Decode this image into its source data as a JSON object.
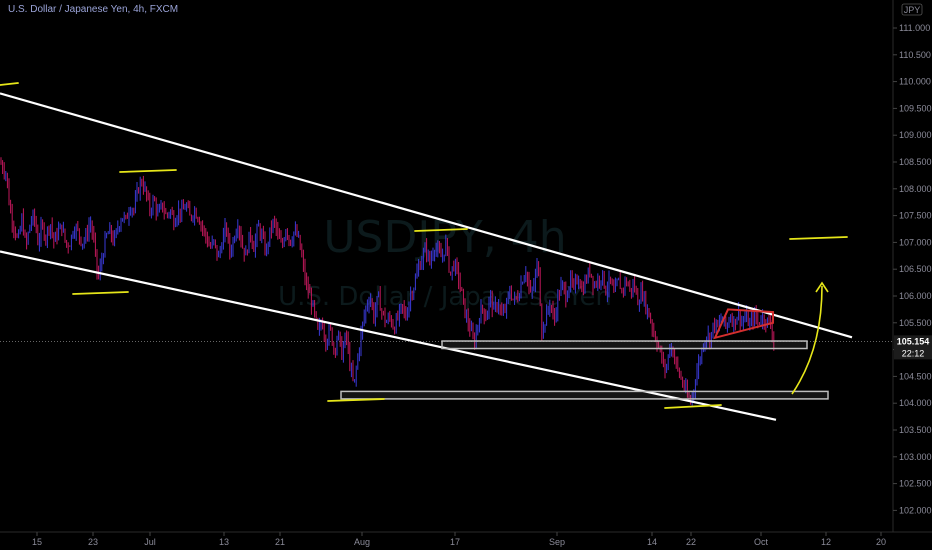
{
  "title": "U.S. Dollar / Japanese Yen, 4h, FXCM",
  "currency_badge": "JPY",
  "watermark": {
    "symbol": "USDJPY, 4h",
    "name": "U.S. Dollar / Japanese Yen"
  },
  "price_label": "105.154",
  "countdown": "22:12",
  "colors": {
    "up": "#3a3ad8",
    "down": "#c2185b",
    "channel": "#ffffff",
    "marker": "#e6e619",
    "zone": "#bdbdbd",
    "triangle": "#d32f2f",
    "badge_bg": "#1c1c1c"
  },
  "chart_data": {
    "type": "candlestick",
    "title": "U.S. Dollar / Japanese Yen, 4h, FXCM",
    "ylim": [
      101.6,
      111.3
    ],
    "y_ticks": [
      "111.000",
      "110.500",
      "110.000",
      "109.500",
      "109.000",
      "108.500",
      "108.000",
      "107.500",
      "107.000",
      "106.500",
      "106.000",
      "105.500",
      "105.000",
      "104.500",
      "104.000",
      "103.500",
      "103.000",
      "102.500",
      "102.000"
    ],
    "x_ticks": [
      "15",
      "23",
      "Jul",
      "13",
      "21",
      "Aug",
      "17",
      "Sep",
      "14",
      "22",
      "Oct",
      "12",
      "20"
    ],
    "close_path": [
      [
        0,
        108.5
      ],
      [
        6,
        108.3
      ],
      [
        10,
        107.6
      ],
      [
        14,
        107.3
      ],
      [
        18,
        107.0
      ],
      [
        22,
        107.45
      ],
      [
        26,
        106.9
      ],
      [
        30,
        107.35
      ],
      [
        34,
        107.5
      ],
      [
        38,
        107.0
      ],
      [
        42,
        107.3
      ],
      [
        46,
        107.1
      ],
      [
        50,
        107.4
      ],
      [
        54,
        107.0
      ],
      [
        58,
        107.2
      ],
      [
        62,
        107.3
      ],
      [
        66,
        106.95
      ],
      [
        70,
        107.0
      ],
      [
        74,
        107.3
      ],
      [
        78,
        107.2
      ],
      [
        82,
        107.0
      ],
      [
        86,
        107.1
      ],
      [
        90,
        107.4
      ],
      [
        94,
        107.0
      ],
      [
        98,
        106.3
      ],
      [
        102,
        106.7
      ],
      [
        106,
        107.1
      ],
      [
        110,
        107.2
      ],
      [
        114,
        107.0
      ],
      [
        118,
        107.3
      ],
      [
        122,
        107.5
      ],
      [
        126,
        107.4
      ],
      [
        130,
        107.7
      ],
      [
        134,
        107.6
      ],
      [
        138,
        108.0
      ],
      [
        142,
        108.15
      ],
      [
        146,
        107.9
      ],
      [
        150,
        107.6
      ],
      [
        154,
        107.8
      ],
      [
        158,
        107.5
      ],
      [
        162,
        107.7
      ],
      [
        166,
        107.5
      ],
      [
        170,
        107.6
      ],
      [
        174,
        107.4
      ],
      [
        178,
        107.6
      ],
      [
        182,
        107.55
      ],
      [
        186,
        107.7
      ],
      [
        190,
        107.45
      ],
      [
        194,
        107.6
      ],
      [
        198,
        107.5
      ],
      [
        202,
        107.3
      ],
      [
        206,
        107.1
      ],
      [
        210,
        106.9
      ],
      [
        214,
        107.0
      ],
      [
        218,
        106.7
      ],
      [
        222,
        107.0
      ],
      [
        226,
        107.3
      ],
      [
        230,
        106.8
      ],
      [
        234,
        107.1
      ],
      [
        238,
        107.4
      ],
      [
        242,
        106.95
      ],
      [
        246,
        106.75
      ],
      [
        250,
        107.2
      ],
      [
        254,
        106.9
      ],
      [
        258,
        107.3
      ],
      [
        262,
        107.1
      ],
      [
        266,
        106.8
      ],
      [
        270,
        107.2
      ],
      [
        274,
        107.4
      ],
      [
        278,
        107.1
      ],
      [
        282,
        106.9
      ],
      [
        286,
        107.3
      ],
      [
        290,
        107.0
      ],
      [
        294,
        107.2
      ],
      [
        298,
        107.1
      ],
      [
        302,
        106.7
      ],
      [
        306,
        106.2
      ],
      [
        310,
        106.0
      ],
      [
        314,
        105.7
      ],
      [
        318,
        105.3
      ],
      [
        322,
        105.55
      ],
      [
        326,
        105.15
      ],
      [
        330,
        105.4
      ],
      [
        334,
        105.0
      ],
      [
        338,
        105.3
      ],
      [
        342,
        104.9
      ],
      [
        346,
        105.3
      ],
      [
        350,
        104.7
      ],
      [
        354,
        104.3
      ],
      [
        358,
        104.9
      ],
      [
        362,
        105.4
      ],
      [
        366,
        105.8
      ],
      [
        370,
        106.0
      ],
      [
        374,
        105.6
      ],
      [
        378,
        106.0
      ],
      [
        382,
        105.7
      ],
      [
        386,
        105.5
      ],
      [
        390,
        105.6
      ],
      [
        394,
        105.4
      ],
      [
        398,
        105.6
      ],
      [
        402,
        105.8
      ],
      [
        406,
        105.6
      ],
      [
        410,
        106.0
      ],
      [
        414,
        106.2
      ],
      [
        418,
        106.5
      ],
      [
        422,
        106.7
      ],
      [
        426,
        106.9
      ],
      [
        430,
        106.6
      ],
      [
        434,
        106.95
      ],
      [
        438,
        106.8
      ],
      [
        442,
        106.7
      ],
      [
        446,
        107.0
      ],
      [
        450,
        106.4
      ],
      [
        454,
        106.6
      ],
      [
        458,
        106.4
      ],
      [
        462,
        106.0
      ],
      [
        466,
        105.6
      ],
      [
        470,
        105.4
      ],
      [
        474,
        105.1
      ],
      [
        478,
        105.5
      ],
      [
        482,
        105.8
      ],
      [
        486,
        105.6
      ],
      [
        490,
        106.0
      ],
      [
        494,
        105.7
      ],
      [
        498,
        105.9
      ],
      [
        502,
        105.6
      ],
      [
        506,
        105.8
      ],
      [
        510,
        106.1
      ],
      [
        514,
        105.9
      ],
      [
        518,
        106.0
      ],
      [
        522,
        106.3
      ],
      [
        526,
        106.5
      ],
      [
        530,
        106.0
      ],
      [
        534,
        106.2
      ],
      [
        538,
        106.7
      ],
      [
        542,
        105.3
      ],
      [
        546,
        105.6
      ],
      [
        550,
        105.9
      ],
      [
        554,
        105.5
      ],
      [
        558,
        106.0
      ],
      [
        562,
        106.2
      ],
      [
        566,
        106.0
      ],
      [
        570,
        106.3
      ],
      [
        574,
        106.1
      ],
      [
        578,
        106.4
      ],
      [
        582,
        106.1
      ],
      [
        586,
        106.3
      ],
      [
        590,
        106.5
      ],
      [
        594,
        106.2
      ],
      [
        598,
        106.3
      ],
      [
        602,
        106.4
      ],
      [
        606,
        106.1
      ],
      [
        610,
        106.3
      ],
      [
        614,
        106.0
      ],
      [
        618,
        106.3
      ],
      [
        622,
        106.1
      ],
      [
        626,
        106.3
      ],
      [
        630,
        106.1
      ],
      [
        634,
        106.2
      ],
      [
        638,
        105.9
      ],
      [
        642,
        106.1
      ],
      [
        646,
        105.8
      ],
      [
        650,
        105.6
      ],
      [
        654,
        105.3
      ],
      [
        658,
        105.1
      ],
      [
        662,
        104.8
      ],
      [
        666,
        104.6
      ],
      [
        670,
        105.1
      ],
      [
        674,
        104.9
      ],
      [
        678,
        104.6
      ],
      [
        682,
        104.4
      ],
      [
        686,
        104.2
      ],
      [
        690,
        104.0
      ],
      [
        694,
        104.3
      ],
      [
        698,
        104.7
      ],
      [
        702,
        105.0
      ],
      [
        706,
        105.3
      ],
      [
        710,
        105.2
      ],
      [
        714,
        105.5
      ],
      [
        718,
        105.4
      ],
      [
        722,
        105.6
      ],
      [
        726,
        105.4
      ],
      [
        730,
        105.65
      ],
      [
        734,
        105.5
      ],
      [
        738,
        105.7
      ],
      [
        742,
        105.5
      ],
      [
        746,
        105.6
      ],
      [
        750,
        105.45
      ],
      [
        754,
        105.65
      ],
      [
        758,
        105.5
      ],
      [
        762,
        105.6
      ],
      [
        766,
        105.55
      ],
      [
        770,
        105.5
      ],
      [
        774,
        105.15
      ]
    ],
    "channel_upper": [
      [
        0,
        109.78
      ],
      [
        852,
        105.23
      ]
    ],
    "channel_lower": [
      [
        0,
        106.83
      ],
      [
        776,
        103.69
      ]
    ],
    "support_zones": [
      [
        105.02,
        105.16
      ],
      [
        104.08,
        104.22
      ]
    ],
    "triangle": [
      [
        715,
        105.22
      ],
      [
        728,
        105.75
      ],
      [
        773,
        105.7
      ],
      [
        773,
        105.5
      ]
    ],
    "last_price": 105.154
  }
}
